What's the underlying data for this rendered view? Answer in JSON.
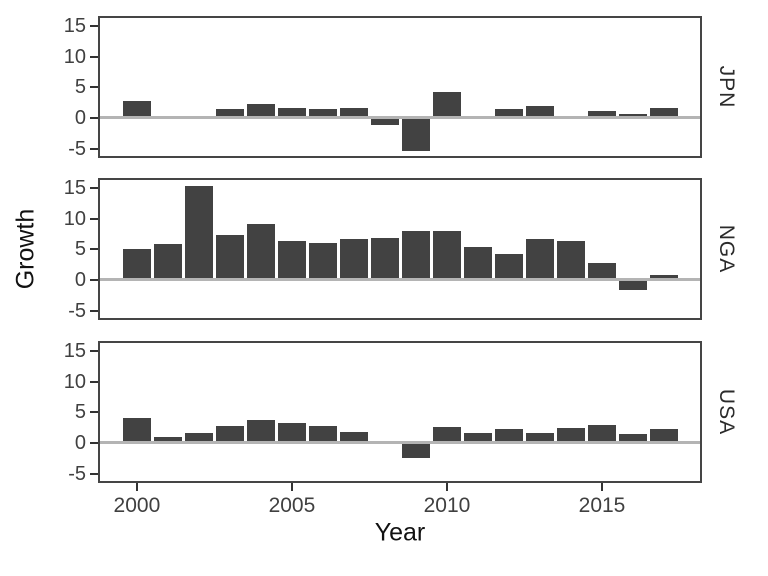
{
  "figure": {
    "x_axis_title": "Year",
    "y_axis_title": "Growth"
  },
  "colors": {
    "bar": "#424242",
    "zero_line": "#b4b4b4",
    "panel_border": "#454545",
    "tick_mark": "#333333",
    "tick_label_text": "#404040",
    "title_text": "#111111",
    "background": "#ffffff"
  },
  "chart_data": {
    "type": "bar",
    "title": "",
    "xlabel": "Year",
    "ylabel": "Growth",
    "facet_position": "right",
    "facet_labels": [
      "JPN",
      "NGA",
      "USA"
    ],
    "x": [
      2000,
      2001,
      2002,
      2003,
      2004,
      2005,
      2006,
      2007,
      2008,
      2009,
      2010,
      2011,
      2012,
      2013,
      2014,
      2015,
      2016,
      2017
    ],
    "series": [
      {
        "name": "JPN",
        "values": [
          2.8,
          0.4,
          0.1,
          1.5,
          2.2,
          1.7,
          1.4,
          1.7,
          -1.1,
          -5.4,
          4.2,
          -0.1,
          1.5,
          2.0,
          0.4,
          1.2,
          0.6,
          1.7
        ]
      },
      {
        "name": "NGA",
        "values": [
          5.0,
          5.9,
          15.3,
          7.3,
          9.2,
          6.4,
          6.1,
          6.6,
          6.8,
          8.0,
          8.0,
          5.3,
          4.2,
          6.7,
          6.3,
          2.7,
          -1.6,
          0.8
        ]
      },
      {
        "name": "USA",
        "values": [
          4.1,
          1.0,
          1.7,
          2.8,
          3.8,
          3.3,
          2.7,
          1.8,
          -0.1,
          -2.5,
          2.6,
          1.6,
          2.2,
          1.7,
          2.5,
          2.9,
          1.5,
          2.2
        ]
      }
    ],
    "x_ticks": [
      2000,
      2005,
      2010,
      2015
    ],
    "y_ticks": [
      15,
      10,
      5,
      0,
      -5
    ],
    "xlim": [
      1998.81,
      2018.16
    ],
    "ylim": [
      -6.2,
      16.3
    ],
    "bar_width_years": 0.9,
    "zero_line": true,
    "grid": false,
    "legend": "none"
  }
}
